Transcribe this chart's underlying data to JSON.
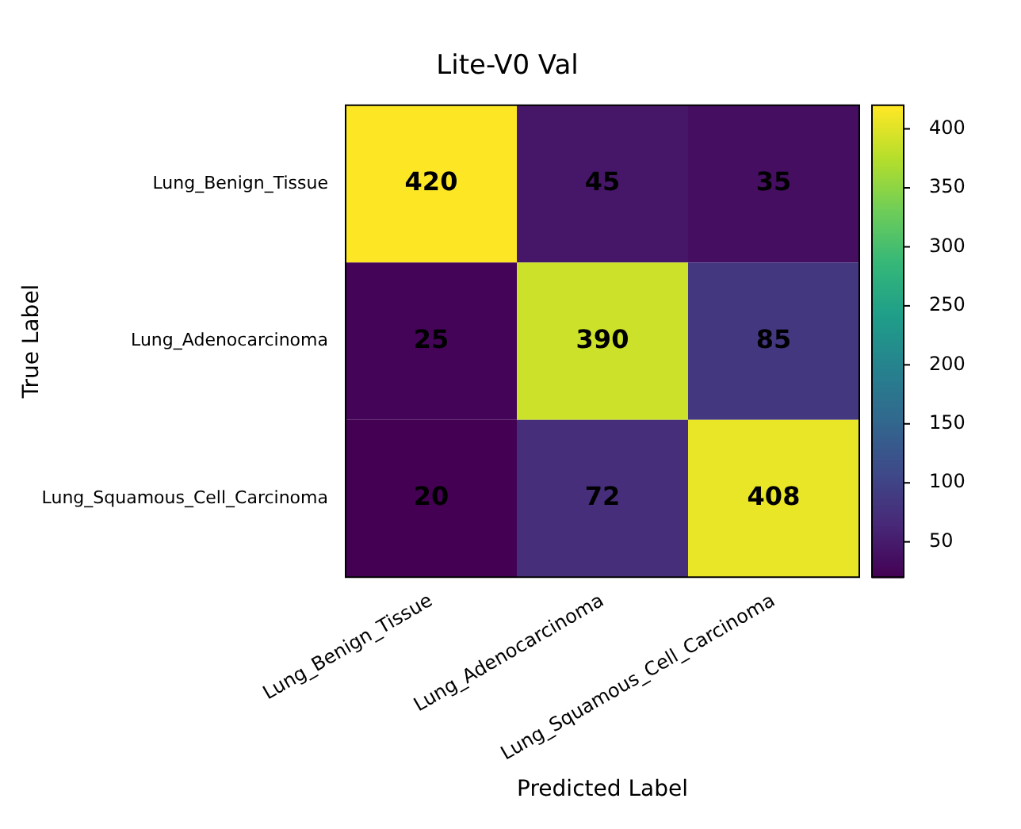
{
  "chart_data": {
    "type": "heatmap",
    "title": "Lite-V0 Val",
    "xlabel": "Predicted Label",
    "ylabel": "True Label",
    "categories": [
      "Lung_Benign_Tissue",
      "Lung_Adenocarcinoma",
      "Lung_Squamous_Cell_Carcinoma"
    ],
    "y_categories": [
      "Lung_Benign_Tissue",
      "Lung_Adenocarcinoma",
      "Lung_Squamous_Cell_Carcinoma"
    ],
    "cells": [
      [
        420,
        45,
        35
      ],
      [
        25,
        390,
        85
      ],
      [
        20,
        72,
        408
      ]
    ],
    "clim": [
      20,
      420
    ],
    "cticks": [
      50,
      100,
      150,
      200,
      250,
      300,
      350,
      400
    ],
    "data_labels": true
  }
}
